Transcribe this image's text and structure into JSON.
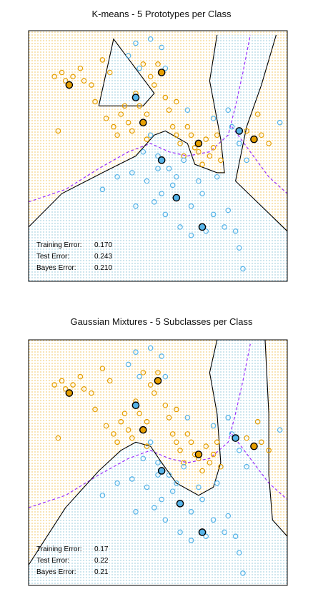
{
  "colors": {
    "orange": "#E69F00",
    "blue": "#56B4E9",
    "bayes_boundary": "#9B30FF",
    "model_boundary": "#000000",
    "frame": "#000000"
  },
  "chart_data": [
    {
      "type": "scatter",
      "title": "K-means - 5 Prototypes per Class",
      "xlabel": "",
      "ylabel": "",
      "grid": false,
      "background": "dotted class-region shading (orange / blue)",
      "stats": [
        {
          "label": "Training Error:",
          "value": "0.170"
        },
        {
          "label": "Test Error:",
          "value": "0.243"
        },
        {
          "label": "Bayes Error:",
          "value": "0.210"
        }
      ],
      "series": [
        {
          "class": "orange",
          "points": [
            [
              -2.8,
              1.7
            ],
            [
              -2.6,
              1.8
            ],
            [
              -2.5,
              1.6
            ],
            [
              -2.3,
              1.7
            ],
            [
              -2.1,
              1.9
            ],
            [
              -2.0,
              1.6
            ],
            [
              -1.8,
              1.5
            ],
            [
              -2.7,
              0.4
            ],
            [
              -1.5,
              2.1
            ],
            [
              -1.3,
              1.8
            ],
            [
              -1.7,
              1.1
            ],
            [
              -1.4,
              0.7
            ],
            [
              -1.2,
              0.5
            ],
            [
              -1.0,
              0.8
            ],
            [
              -0.9,
              1.0
            ],
            [
              -0.8,
              0.6
            ],
            [
              -0.7,
              0.4
            ],
            [
              -0.6,
              1.3
            ],
            [
              -0.5,
              1.0
            ],
            [
              -0.3,
              0.8
            ],
            [
              -0.4,
              2.0
            ],
            [
              -0.2,
              1.7
            ],
            [
              -0.1,
              1.5
            ],
            [
              0.0,
              2.0
            ],
            [
              0.2,
              1.2
            ],
            [
              0.3,
              0.9
            ],
            [
              0.5,
              1.1
            ],
            [
              0.5,
              0.3
            ],
            [
              0.6,
              0.1
            ],
            [
              0.8,
              0.5
            ],
            [
              0.9,
              0.3
            ],
            [
              1.0,
              0.0
            ],
            [
              1.1,
              -0.1
            ],
            [
              1.2,
              -0.4
            ],
            [
              1.3,
              0.2
            ],
            [
              1.4,
              -0.2
            ],
            [
              1.5,
              0.0
            ],
            [
              1.6,
              0.3
            ],
            [
              1.7,
              -0.3
            ],
            [
              2.4,
              0.4
            ],
            [
              2.6,
              0.2
            ],
            [
              2.8,
              0.3
            ],
            [
              3.0,
              0.1
            ],
            [
              2.7,
              0.8
            ],
            [
              0.7,
              -0.2
            ],
            [
              0.4,
              0.5
            ],
            [
              -0.3,
              0.2
            ],
            [
              -1.1,
              0.3
            ]
          ]
        },
        {
          "class": "blue",
          "points": [
            [
              -0.6,
              2.5
            ],
            [
              -0.2,
              2.6
            ],
            [
              0.1,
              2.4
            ],
            [
              -0.8,
              2.2
            ],
            [
              -0.5,
              1.9
            ],
            [
              0.2,
              1.9
            ],
            [
              -0.2,
              0.3
            ],
            [
              -0.4,
              -0.1
            ],
            [
              0.0,
              -0.2
            ],
            [
              0.3,
              -0.5
            ],
            [
              0.5,
              -0.7
            ],
            [
              0.7,
              -0.3
            ],
            [
              0.4,
              -0.9
            ],
            [
              0.1,
              -1.1
            ],
            [
              -0.3,
              -0.8
            ],
            [
              -0.7,
              -0.6
            ],
            [
              -1.1,
              -0.7
            ],
            [
              -1.5,
              -1.0
            ],
            [
              -0.6,
              -1.4
            ],
            [
              0.2,
              -1.6
            ],
            [
              0.6,
              -1.9
            ],
            [
              0.9,
              -1.4
            ],
            [
              1.2,
              -1.1
            ],
            [
              1.5,
              -1.6
            ],
            [
              1.9,
              -1.5
            ],
            [
              2.1,
              -2.0
            ],
            [
              2.2,
              -2.4
            ],
            [
              1.8,
              -1.9
            ],
            [
              1.3,
              -2.0
            ],
            [
              0.9,
              -2.1
            ],
            [
              1.1,
              -0.8
            ],
            [
              1.6,
              -0.7
            ],
            [
              2.0,
              0.5
            ],
            [
              1.9,
              0.9
            ],
            [
              2.2,
              0.1
            ],
            [
              2.4,
              -0.3
            ],
            [
              3.3,
              0.6
            ],
            [
              1.5,
              0.7
            ],
            [
              0.8,
              0.9
            ],
            [
              -0.1,
              -1.3
            ],
            [
              2.3,
              -2.9
            ],
            [
              0.0,
              -0.5
            ]
          ]
        }
      ],
      "prototypes": {
        "orange": [
          [
            -2.4,
            1.5
          ],
          [
            -0.4,
            0.6
          ],
          [
            0.1,
            1.8
          ],
          [
            1.1,
            0.1
          ],
          [
            2.6,
            0.2
          ]
        ],
        "blue": [
          [
            -0.6,
            1.2
          ],
          [
            0.1,
            -0.3
          ],
          [
            0.5,
            -1.2
          ],
          [
            2.2,
            0.4
          ],
          [
            1.2,
            -1.9
          ]
        ]
      },
      "model_boundary": [
        [
          [
            -3.5,
            -1.9
          ],
          [
            -2.6,
            -1.1
          ],
          [
            -1.5,
            -0.6
          ],
          [
            -0.6,
            -0.2
          ],
          [
            -0.1,
            0.3
          ],
          [
            0.2,
            0.4
          ],
          [
            0.8,
            0.1
          ],
          [
            1.0,
            -0.4
          ],
          [
            1.6,
            -0.6
          ],
          [
            1.8,
            -0.6
          ],
          [
            1.7,
            0.2
          ],
          [
            1.4,
            1.6
          ],
          [
            1.6,
            2.7
          ]
        ],
        [
          [
            -1.6,
            1.0
          ],
          [
            -1.2,
            2.6
          ],
          [
            -0.1,
            1.3
          ],
          [
            -0.4,
            1.0
          ],
          [
            -1.6,
            1.0
          ]
        ],
        [
          [
            3.2,
            2.7
          ],
          [
            2.8,
            1.5
          ],
          [
            2.4,
            0.5
          ],
          [
            2.1,
            -0.8
          ],
          [
            3.5,
            -2.0
          ]
        ]
      ],
      "bayes_boundary": [
        [
          [
            -3.5,
            -1.3
          ],
          [
            -2.5,
            -1.0
          ],
          [
            -1.6,
            -0.5
          ],
          [
            -0.8,
            -0.1
          ],
          [
            -0.2,
            0.1
          ],
          [
            0.3,
            -0.1
          ],
          [
            0.8,
            -0.2
          ],
          [
            1.4,
            -0.1
          ],
          [
            1.9,
            0.3
          ],
          [
            2.1,
            1.0
          ],
          [
            2.3,
            1.8
          ],
          [
            2.5,
            2.7
          ]
        ],
        [
          [
            2.0,
            0.5
          ],
          [
            2.5,
            -0.1
          ],
          [
            3.0,
            -0.7
          ],
          [
            3.5,
            -1.1
          ]
        ]
      ]
    },
    {
      "type": "scatter",
      "title": "Gaussian Mixtures - 5 Subclasses per Class",
      "xlabel": "",
      "ylabel": "",
      "grid": false,
      "background": "dotted class-region shading (orange / blue)",
      "stats": [
        {
          "label": "Training Error:",
          "value": "0.17"
        },
        {
          "label": "Test Error:",
          "value": "0.22"
        },
        {
          "label": "Bayes Error:",
          "value": "0.21"
        }
      ],
      "series": [
        {
          "class": "orange",
          "points": [
            [
              -2.8,
              1.7
            ],
            [
              -2.6,
              1.8
            ],
            [
              -2.5,
              1.6
            ],
            [
              -2.3,
              1.7
            ],
            [
              -2.1,
              1.9
            ],
            [
              -2.0,
              1.6
            ],
            [
              -1.8,
              1.5
            ],
            [
              -2.7,
              0.4
            ],
            [
              -1.5,
              2.1
            ],
            [
              -1.3,
              1.8
            ],
            [
              -1.7,
              1.1
            ],
            [
              -1.4,
              0.7
            ],
            [
              -1.2,
              0.5
            ],
            [
              -1.0,
              0.8
            ],
            [
              -0.9,
              1.0
            ],
            [
              -0.8,
              0.6
            ],
            [
              -0.7,
              0.4
            ],
            [
              -0.6,
              1.3
            ],
            [
              -0.5,
              1.0
            ],
            [
              -0.3,
              0.8
            ],
            [
              -0.4,
              2.0
            ],
            [
              -0.2,
              1.7
            ],
            [
              -0.1,
              1.5
            ],
            [
              0.0,
              2.0
            ],
            [
              0.2,
              1.2
            ],
            [
              0.3,
              0.9
            ],
            [
              0.5,
              1.1
            ],
            [
              0.5,
              0.3
            ],
            [
              0.6,
              0.1
            ],
            [
              0.8,
              0.5
            ],
            [
              0.9,
              0.3
            ],
            [
              1.0,
              0.0
            ],
            [
              1.1,
              -0.1
            ],
            [
              1.2,
              -0.4
            ],
            [
              1.3,
              0.2
            ],
            [
              1.4,
              -0.2
            ],
            [
              1.5,
              0.0
            ],
            [
              1.6,
              0.3
            ],
            [
              1.7,
              -0.3
            ],
            [
              2.4,
              0.4
            ],
            [
              2.6,
              0.2
            ],
            [
              2.8,
              0.3
            ],
            [
              3.0,
              0.1
            ],
            [
              2.7,
              0.8
            ],
            [
              0.7,
              -0.2
            ],
            [
              0.4,
              0.5
            ],
            [
              -0.3,
              0.2
            ],
            [
              -1.1,
              0.3
            ]
          ]
        },
        {
          "class": "blue",
          "points": [
            [
              -0.6,
              2.5
            ],
            [
              -0.2,
              2.6
            ],
            [
              0.1,
              2.4
            ],
            [
              -0.8,
              2.2
            ],
            [
              -0.5,
              1.9
            ],
            [
              0.2,
              1.9
            ],
            [
              -0.2,
              0.3
            ],
            [
              -0.4,
              -0.1
            ],
            [
              0.0,
              -0.2
            ],
            [
              0.3,
              -0.5
            ],
            [
              0.5,
              -0.7
            ],
            [
              0.7,
              -0.3
            ],
            [
              0.4,
              -0.9
            ],
            [
              0.1,
              -1.1
            ],
            [
              -0.3,
              -0.8
            ],
            [
              -0.7,
              -0.6
            ],
            [
              -1.1,
              -0.7
            ],
            [
              -1.5,
              -1.0
            ],
            [
              -0.6,
              -1.4
            ],
            [
              0.2,
              -1.6
            ],
            [
              0.6,
              -1.9
            ],
            [
              0.9,
              -1.4
            ],
            [
              1.2,
              -1.1
            ],
            [
              1.5,
              -1.6
            ],
            [
              1.9,
              -1.5
            ],
            [
              2.1,
              -2.0
            ],
            [
              2.2,
              -2.4
            ],
            [
              1.8,
              -1.9
            ],
            [
              1.3,
              -2.0
            ],
            [
              0.9,
              -2.1
            ],
            [
              1.1,
              -0.8
            ],
            [
              1.6,
              -0.7
            ],
            [
              2.0,
              0.5
            ],
            [
              1.9,
              0.9
            ],
            [
              2.2,
              0.1
            ],
            [
              2.4,
              -0.3
            ],
            [
              3.3,
              0.6
            ],
            [
              1.5,
              0.7
            ],
            [
              0.8,
              0.9
            ],
            [
              -0.1,
              -1.3
            ],
            [
              2.3,
              -2.9
            ],
            [
              0.0,
              -0.5
            ]
          ]
        }
      ],
      "prototypes": {
        "orange": [
          [
            -2.4,
            1.5
          ],
          [
            -0.4,
            0.6
          ],
          [
            0.0,
            1.8
          ],
          [
            1.1,
            0.0
          ],
          [
            2.6,
            0.2
          ]
        ],
        "blue": [
          [
            -0.6,
            1.2
          ],
          [
            0.1,
            -0.4
          ],
          [
            0.6,
            -1.2
          ],
          [
            2.1,
            0.4
          ],
          [
            1.2,
            -1.9
          ]
        ]
      },
      "model_boundary": [
        [
          [
            -3.5,
            -2.7
          ],
          [
            -2.5,
            -1.3
          ],
          [
            -1.6,
            -0.4
          ],
          [
            -1.0,
            0.1
          ],
          [
            -0.6,
            0.3
          ],
          [
            -0.2,
            0.2
          ],
          [
            0.1,
            -0.2
          ],
          [
            0.5,
            -0.7
          ],
          [
            1.1,
            -1.0
          ],
          [
            1.5,
            -0.8
          ],
          [
            1.7,
            -0.2
          ],
          [
            1.6,
            1.0
          ],
          [
            1.4,
            2.0
          ],
          [
            1.6,
            2.8
          ]
        ],
        [
          [
            2.9,
            2.8
          ],
          [
            3.0,
            1.0
          ],
          [
            3.0,
            -0.5
          ],
          [
            3.1,
            -1.6
          ],
          [
            3.5,
            -2.0
          ]
        ]
      ],
      "bayes_boundary": [
        [
          [
            -3.5,
            -1.3
          ],
          [
            -2.5,
            -1.0
          ],
          [
            -1.6,
            -0.5
          ],
          [
            -0.8,
            -0.1
          ],
          [
            -0.2,
            0.1
          ],
          [
            0.3,
            -0.1
          ],
          [
            0.8,
            -0.2
          ],
          [
            1.4,
            -0.1
          ],
          [
            1.9,
            0.3
          ],
          [
            2.1,
            1.0
          ],
          [
            2.3,
            1.8
          ],
          [
            2.5,
            2.7
          ]
        ],
        [
          [
            2.0,
            0.5
          ],
          [
            2.5,
            -0.1
          ],
          [
            3.0,
            -0.7
          ],
          [
            3.5,
            -1.1
          ]
        ]
      ]
    }
  ]
}
